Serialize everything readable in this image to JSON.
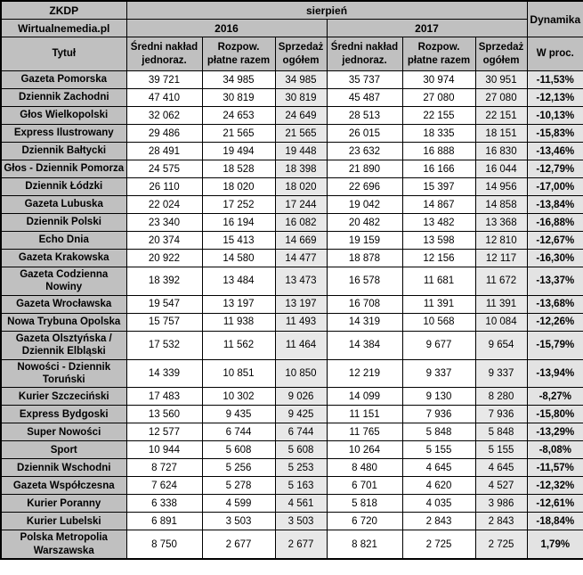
{
  "colors": {
    "header_bg": "#c0c0c0",
    "title_column_bg": "#c0c0c0",
    "plain_column_bg": "#ffffff",
    "shaded_column_bg": "#e8e8e8",
    "dynamics_column_bg": "#e3e3e3",
    "border": "#000000",
    "text": "#000000"
  },
  "chart_data": {
    "type": "table",
    "header": {
      "org": "ZKDP",
      "source": "Wirtualnemedia.pl",
      "month": "sierpień",
      "dynamics": "Dynamika",
      "percent_column": "W proc.",
      "title_column": "Tytuł",
      "years": [
        "2016",
        "2017"
      ],
      "metrics": [
        "Średni nakład jednoraz.",
        "Rozpow. płatne razem",
        "Sprzedaż ogółem"
      ]
    },
    "rows": [
      {
        "title": "Gazeta Pomorska",
        "y2016": [
          "39 721",
          "34 985",
          "34 985"
        ],
        "y2017": [
          "35 737",
          "30 974",
          "30 951"
        ],
        "dynamics": "-11,53%"
      },
      {
        "title": "Dziennik Zachodni",
        "y2016": [
          "47 410",
          "30 819",
          "30 819"
        ],
        "y2017": [
          "45 487",
          "27 080",
          "27 080"
        ],
        "dynamics": "-12,13%"
      },
      {
        "title": "Głos Wielkopolski",
        "y2016": [
          "32 062",
          "24 653",
          "24 649"
        ],
        "y2017": [
          "28 513",
          "22 155",
          "22 151"
        ],
        "dynamics": "-10,13%"
      },
      {
        "title": "Express Ilustrowany",
        "y2016": [
          "29 486",
          "21 565",
          "21 565"
        ],
        "y2017": [
          "26 015",
          "18 335",
          "18 151"
        ],
        "dynamics": "-15,83%"
      },
      {
        "title": "Dziennik Bałtycki",
        "y2016": [
          "28 491",
          "19 494",
          "19 448"
        ],
        "y2017": [
          "23 632",
          "16 888",
          "16 830"
        ],
        "dynamics": "-13,46%"
      },
      {
        "title": "Głos - Dziennik Pomorza",
        "y2016": [
          "24 575",
          "18 528",
          "18 398"
        ],
        "y2017": [
          "21 890",
          "16 166",
          "16 044"
        ],
        "dynamics": "-12,79%"
      },
      {
        "title": "Dziennik Łódzki",
        "y2016": [
          "26 110",
          "18 020",
          "18 020"
        ],
        "y2017": [
          "22 696",
          "15 397",
          "14 956"
        ],
        "dynamics": "-17,00%"
      },
      {
        "title": "Gazeta Lubuska",
        "y2016": [
          "22 024",
          "17 252",
          "17 244"
        ],
        "y2017": [
          "19 042",
          "14 867",
          "14 858"
        ],
        "dynamics": "-13,84%"
      },
      {
        "title": "Dziennik Polski",
        "y2016": [
          "23 340",
          "16 194",
          "16 082"
        ],
        "y2017": [
          "20 482",
          "13 482",
          "13 368"
        ],
        "dynamics": "-16,88%"
      },
      {
        "title": "Echo Dnia",
        "y2016": [
          "20 374",
          "15 413",
          "14 669"
        ],
        "y2017": [
          "19 159",
          "13 598",
          "12 810"
        ],
        "dynamics": "-12,67%"
      },
      {
        "title": "Gazeta Krakowska",
        "y2016": [
          "20 922",
          "14 580",
          "14 477"
        ],
        "y2017": [
          "18 878",
          "12 156",
          "12 117"
        ],
        "dynamics": "-16,30%"
      },
      {
        "title": "Gazeta Codzienna Nowiny",
        "y2016": [
          "18 392",
          "13 484",
          "13 473"
        ],
        "y2017": [
          "16 578",
          "11 681",
          "11 672"
        ],
        "dynamics": "-13,37%"
      },
      {
        "title": "Gazeta Wrocławska",
        "y2016": [
          "19 547",
          "13 197",
          "13 197"
        ],
        "y2017": [
          "16 708",
          "11 391",
          "11 391"
        ],
        "dynamics": "-13,68%"
      },
      {
        "title": "Nowa Trybuna Opolska",
        "y2016": [
          "15 757",
          "11 938",
          "11 493"
        ],
        "y2017": [
          "14 319",
          "10 568",
          "10 084"
        ],
        "dynamics": "-12,26%"
      },
      {
        "title": "Gazeta Olsztyńska / Dziennik Elbląski",
        "y2016": [
          "17 532",
          "11 562",
          "11 464"
        ],
        "y2017": [
          "14 384",
          "9 677",
          "9 654"
        ],
        "dynamics": "-15,79%"
      },
      {
        "title": "Nowości - Dziennik Toruński",
        "y2016": [
          "14 339",
          "10 851",
          "10 850"
        ],
        "y2017": [
          "12 219",
          "9 337",
          "9 337"
        ],
        "dynamics": "-13,94%"
      },
      {
        "title": "Kurier Szczeciński",
        "y2016": [
          "17 483",
          "10 302",
          "9 026"
        ],
        "y2017": [
          "14 099",
          "9 130",
          "8 280"
        ],
        "dynamics": "-8,27%"
      },
      {
        "title": "Express Bydgoski",
        "y2016": [
          "13 560",
          "9 435",
          "9 425"
        ],
        "y2017": [
          "11 151",
          "7 936",
          "7 936"
        ],
        "dynamics": "-15,80%"
      },
      {
        "title": "Super Nowości",
        "y2016": [
          "12 577",
          "6 744",
          "6 744"
        ],
        "y2017": [
          "11 765",
          "5 848",
          "5 848"
        ],
        "dynamics": "-13,29%"
      },
      {
        "title": "Sport",
        "y2016": [
          "10 944",
          "5 608",
          "5 608"
        ],
        "y2017": [
          "10 264",
          "5 155",
          "5 155"
        ],
        "dynamics": "-8,08%"
      },
      {
        "title": "Dziennik Wschodni",
        "y2016": [
          "8 727",
          "5 256",
          "5 253"
        ],
        "y2017": [
          "8 480",
          "4 645",
          "4 645"
        ],
        "dynamics": "-11,57%"
      },
      {
        "title": "Gazeta Współczesna",
        "y2016": [
          "7 624",
          "5 278",
          "5 163"
        ],
        "y2017": [
          "6 701",
          "4 620",
          "4 527"
        ],
        "dynamics": "-12,32%"
      },
      {
        "title": "Kurier Poranny",
        "y2016": [
          "6 338",
          "4 599",
          "4 561"
        ],
        "y2017": [
          "5 818",
          "4 035",
          "3 986"
        ],
        "dynamics": "-12,61%"
      },
      {
        "title": "Kurier Lubelski",
        "y2016": [
          "6 891",
          "3 503",
          "3 503"
        ],
        "y2017": [
          "6 720",
          "2 843",
          "2 843"
        ],
        "dynamics": "-18,84%"
      },
      {
        "title": "Polska Metropolia Warszawska",
        "y2016": [
          "8 750",
          "2 677",
          "2 677"
        ],
        "y2017": [
          "8 821",
          "2 725",
          "2 725"
        ],
        "dynamics": "1,79%"
      }
    ]
  }
}
